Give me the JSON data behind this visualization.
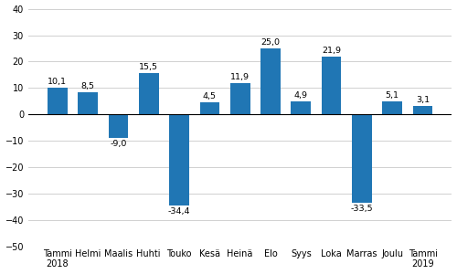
{
  "categories": [
    "Tammi\n2018",
    "Helmi",
    "Maalis",
    "Huhti",
    "Touko",
    "Kesä",
    "Heinä",
    "Elo",
    "Syys",
    "Loka",
    "Marras",
    "Joulu",
    "Tammi\n2019"
  ],
  "values": [
    10.1,
    8.5,
    -9.0,
    15.5,
    -34.4,
    4.5,
    11.9,
    25.0,
    4.9,
    21.9,
    -33.5,
    5.1,
    3.1
  ],
  "bar_color": "#2076b4",
  "ylim": [
    -50,
    40
  ],
  "yticks": [
    -50,
    -40,
    -30,
    -20,
    -10,
    0,
    10,
    20,
    30,
    40
  ],
  "tick_fontsize": 7.0,
  "bar_label_fontsize": 6.8,
  "background_color": "#ffffff",
  "grid_color": "#d0d0d0"
}
